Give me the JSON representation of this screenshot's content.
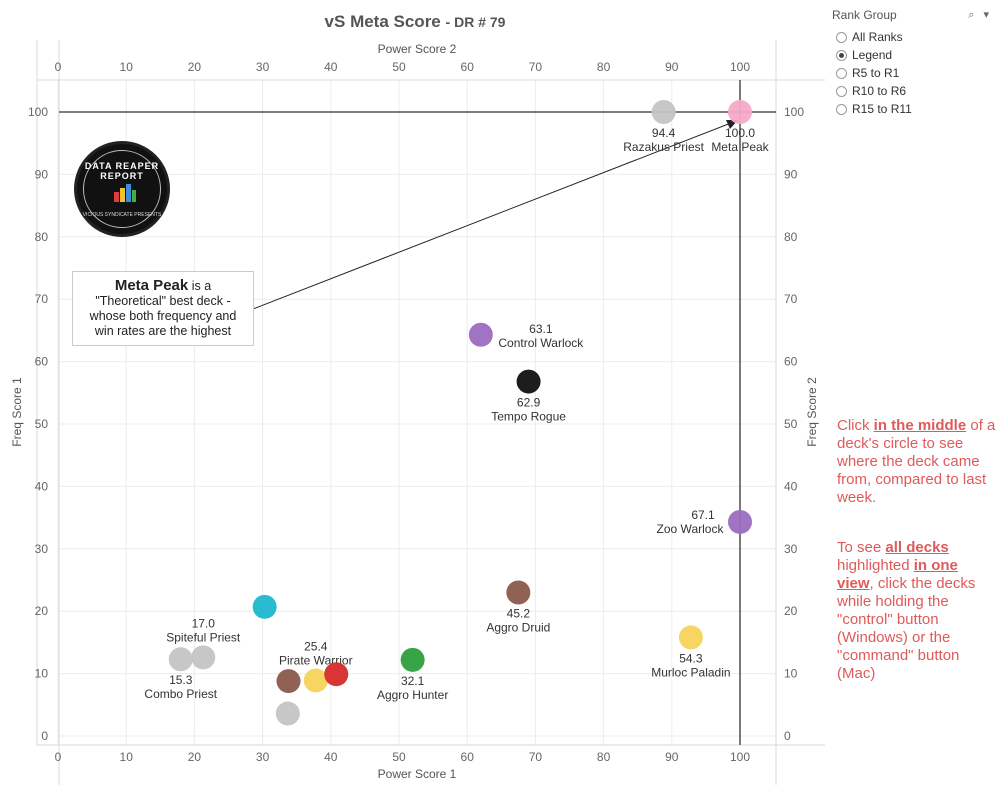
{
  "title": {
    "main": "vS Meta Score",
    "sub": "DR # 79"
  },
  "rank_group": {
    "title": "Rank Group",
    "tools": "⌕ ▾",
    "options": [
      {
        "label": "All Ranks",
        "selected": false
      },
      {
        "label": "Legend",
        "selected": true
      },
      {
        "label": "R5 to R1",
        "selected": false
      },
      {
        "label": "R10 to R6",
        "selected": false
      },
      {
        "label": "R15 to R11",
        "selected": false
      }
    ]
  },
  "help": {
    "p1_pre": "Click ",
    "p1_bold": "in the middle",
    "p1_post": " of a deck's circle to see where the deck came from, compared to last week.",
    "p2_pre": "To see ",
    "p2_bold1": "all decks",
    "p2_mid": " highlighted ",
    "p2_bold2": "in one view",
    "p2_post": ", click the decks while holding the \"control\" button (Windows) or the \"command\" button (Mac)"
  },
  "callout": {
    "bold": "Meta Peak",
    "rest1": " is a",
    "rest2": "\"Theoretical\" best deck -",
    "rest3": "whose both frequency and",
    "rest4": "win rates are the highest"
  },
  "logo": {
    "text_top": "DATA REAPER REPORT",
    "text_bottom": "VICIOUS SYNDICATE PRESENTS"
  },
  "chart_data": {
    "type": "scatter",
    "xlabel": "Power Score 1",
    "x2label": "Power Score 2",
    "ylabel": "Freq Score 1",
    "y2label": "Freq Score 2",
    "xlim": [
      0,
      105
    ],
    "ylim": [
      -2,
      106
    ],
    "xticks": [
      0,
      10,
      20,
      30,
      40,
      50,
      60,
      70,
      80,
      90,
      100
    ],
    "yticks": [
      0,
      10,
      20,
      30,
      40,
      50,
      60,
      70,
      80,
      90,
      100
    ],
    "reference_lines": {
      "x": 100,
      "y": 100
    },
    "points": [
      {
        "name": "Meta Peak",
        "score": "100.0",
        "x": 100,
        "y": 100,
        "color": "#f4a9c8",
        "label_pos": "below"
      },
      {
        "name": "Razakus Priest",
        "score": "94.4",
        "x": 88.8,
        "y": 100,
        "color": "#c4c4c4",
        "label_pos": "below"
      },
      {
        "name": "Control Warlock",
        "score": "63.1",
        "x": 62,
        "y": 64.3,
        "color": "#9b6bc0",
        "label_pos": "right"
      },
      {
        "name": "Tempo Rogue",
        "score": "62.9",
        "x": 69,
        "y": 56.8,
        "color": "#111111",
        "label_pos": "below"
      },
      {
        "name": "Zoo Warlock",
        "score": "67.1",
        "x": 100,
        "y": 34.3,
        "color": "#9b6bc0",
        "label_pos": "left"
      },
      {
        "name": "Aggro Druid",
        "score": "45.2",
        "x": 67.5,
        "y": 23,
        "color": "#8b5a4a",
        "label_pos": "below"
      },
      {
        "name": "Murloc Paladin",
        "score": "54.3",
        "x": 92.8,
        "y": 15.8,
        "color": "#f7d35a",
        "label_pos": "below"
      },
      {
        "name": "Aggro Hunter",
        "score": "32.1",
        "x": 52,
        "y": 12.2,
        "color": "#2e9e3e",
        "label_pos": "below"
      },
      {
        "name": "Spiteful Priest",
        "score": "17.0",
        "x": 21.3,
        "y": 12.6,
        "color": "#c4c4c4",
        "label_pos": "above"
      },
      {
        "name": "Combo Priest",
        "score": "15.3",
        "x": 18,
        "y": 12.3,
        "color": "#c4c4c4",
        "label_pos": "below"
      },
      {
        "name": "",
        "score": "",
        "x": 30.3,
        "y": 20.7,
        "color": "#1eb8cf",
        "label_pos": "none"
      },
      {
        "name": "Pirate Warrior",
        "score": "25.4",
        "x": 37.8,
        "y": 8.9,
        "color": "#f7d35a",
        "label_pos": "above"
      },
      {
        "name": "",
        "score": "",
        "x": 33.8,
        "y": 8.8,
        "color": "#8b5a4a",
        "label_pos": "none"
      },
      {
        "name": "",
        "score": "",
        "x": 40.8,
        "y": 9.9,
        "color": "#d62a2a",
        "label_pos": "none"
      },
      {
        "name": "",
        "score": "",
        "x": 33.7,
        "y": 3.6,
        "color": "#c4c4c4",
        "label_pos": "none"
      }
    ]
  }
}
